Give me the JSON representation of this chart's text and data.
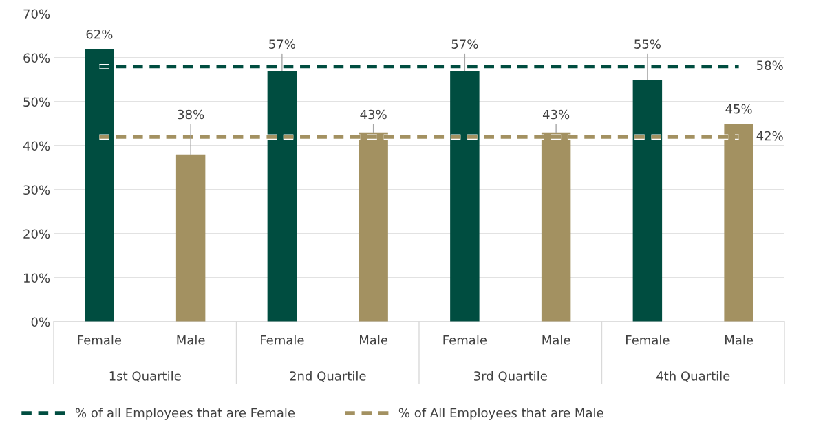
{
  "chart_data": {
    "type": "bar",
    "categories": [
      "Female",
      "Male",
      "Female",
      "Male",
      "Female",
      "Male",
      "Female",
      "Male"
    ],
    "series": [
      {
        "colors": [
          "#004d40",
          "#a39161",
          "#004d40",
          "#a39161",
          "#004d40",
          "#a39161",
          "#004d40",
          "#a39161"
        ],
        "values": [
          62,
          38,
          57,
          43,
          57,
          43,
          55,
          45
        ],
        "value_labels": [
          "62%",
          "38%",
          "57%",
          "43%",
          "57%",
          "43%",
          "55%",
          "45%"
        ]
      },
      {
        "type": "line",
        "name": "% of all Employees that are Female",
        "color": "#004d40",
        "values": [
          58,
          58,
          58,
          58,
          58,
          58,
          58,
          58
        ],
        "value_labels": [
          null,
          null,
          null,
          null,
          null,
          null,
          null,
          "58%"
        ]
      },
      {
        "type": "line",
        "name": "% of All Employees that are Male",
        "color": "#a39161",
        "values": [
          42,
          42,
          42,
          42,
          42,
          42,
          42,
          42
        ],
        "value_labels": [
          null,
          null,
          null,
          null,
          null,
          null,
          null,
          "42%"
        ]
      }
    ],
    "annotations": [
      "1st Quartile",
      "2nd Quartile",
      "3rd Quartile",
      "4th Quartile"
    ],
    "ylim": [
      0,
      70
    ],
    "yticks": [
      {
        "value": 0,
        "label": "0%"
      },
      {
        "value": 10,
        "label": "10%"
      },
      {
        "value": 20,
        "label": "20%"
      },
      {
        "value": 30,
        "label": "30%"
      },
      {
        "value": 40,
        "label": "40%"
      },
      {
        "value": 50,
        "label": "50%"
      },
      {
        "value": 60,
        "label": "60%"
      },
      {
        "value": 70,
        "label": "70%"
      }
    ],
    "grid": "y",
    "legend": "bottom",
    "line_style": "dashed",
    "marker": "none"
  }
}
